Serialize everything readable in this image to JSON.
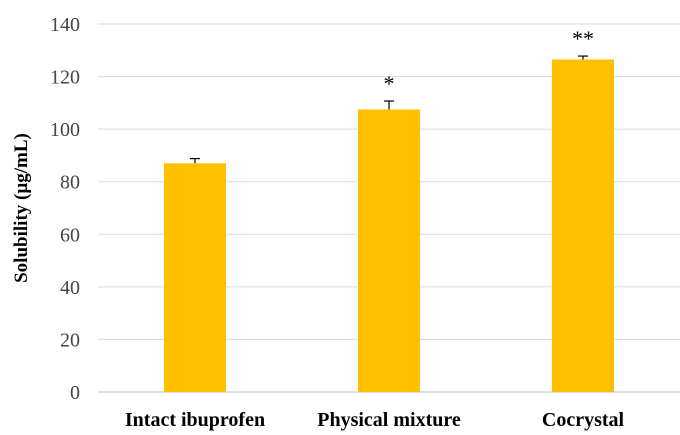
{
  "chart_data": {
    "type": "bar",
    "title": "",
    "xlabel": "",
    "ylabel": "Solubility (µg/mL)",
    "ylim": [
      0,
      140
    ],
    "yticks": [
      0,
      20,
      40,
      60,
      80,
      100,
      120,
      140
    ],
    "categories": [
      "Intact ibuprofen",
      "Physical mixture",
      "Cocrystal"
    ],
    "values": [
      87,
      107.5,
      126.5
    ],
    "errors": [
      1.8,
      3.2,
      1.3
    ],
    "significance": [
      "",
      "*",
      "**"
    ],
    "bar_color": "#ffc000",
    "grid": true,
    "legend": false
  }
}
